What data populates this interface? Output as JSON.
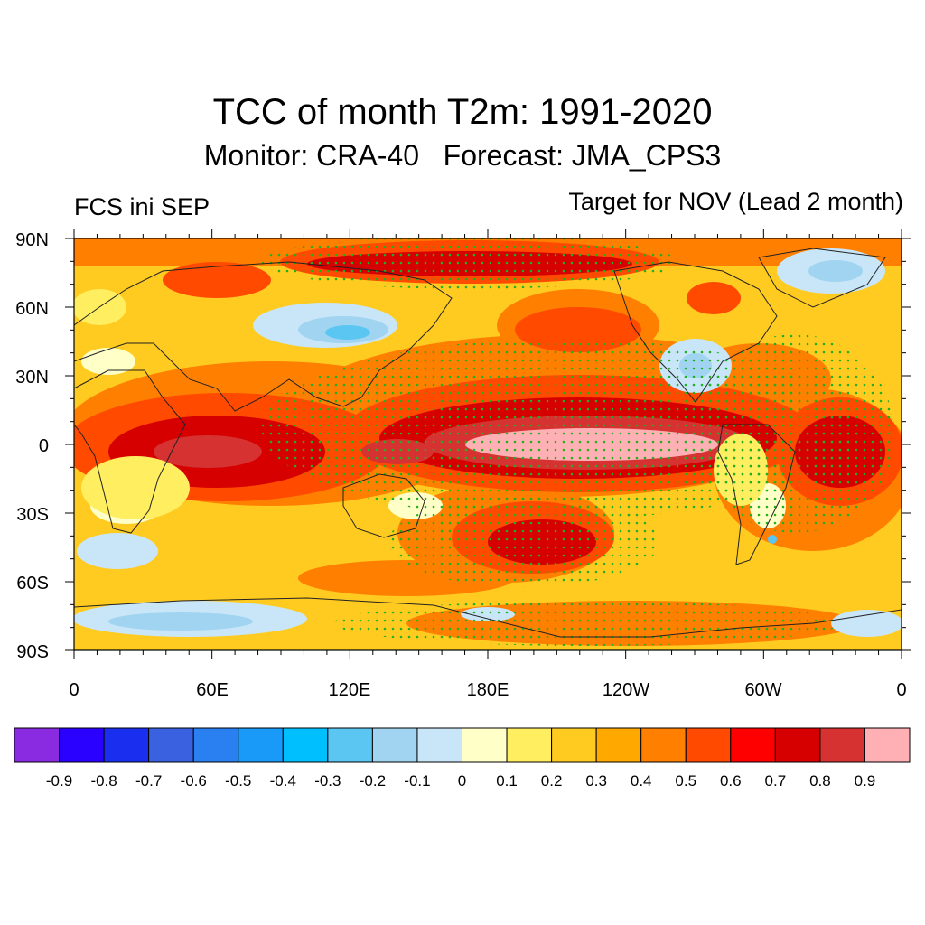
{
  "header": {
    "title": "TCC of month T2m: 1991-2020",
    "subtitle": "Monitor: CRA-40   Forecast: JMA_CPS3",
    "left_label": "FCS ini SEP",
    "right_label": "Target for NOV (Lead 2 month)"
  },
  "map": {
    "lat_labels": [
      "90N",
      "60N",
      "30N",
      "0",
      "30S",
      "60S",
      "90S"
    ],
    "lon_labels": [
      "0",
      "60E",
      "120E",
      "180E",
      "120W",
      "60W",
      "0"
    ]
  },
  "colorbar": {
    "colors": [
      "#8a2be2",
      "#2a00ff",
      "#1a2ef0",
      "#3a62e0",
      "#2a80f0",
      "#1a9af8",
      "#00bfff",
      "#5cc6f2",
      "#a0d4f0",
      "#c8e6f8",
      "#ffffc8",
      "#ffee60",
      "#ffcb20",
      "#ffa800",
      "#ff7f00",
      "#ff4a00",
      "#ff0000",
      "#d60000",
      "#d63232",
      "#ffb0b4"
    ],
    "labels": [
      "-0.9",
      "-0.8",
      "-0.7",
      "-0.6",
      "-0.5",
      "-0.4",
      "-0.3",
      "-0.2",
      "-0.1",
      "0",
      "0.1",
      "0.2",
      "0.3",
      "0.4",
      "0.5",
      "0.6",
      "0.7",
      "0.8",
      "0.9"
    ]
  },
  "legend_colors": {
    "significance_dot": "#22b022",
    "coastline": "#222222"
  }
}
